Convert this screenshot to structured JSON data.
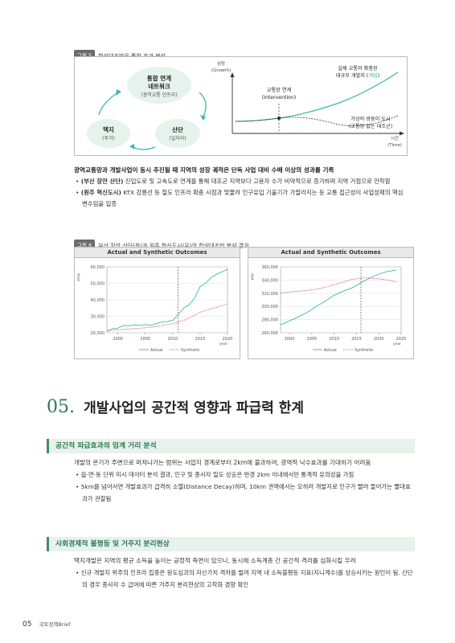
{
  "figure5": {
    "tag": "그림 5",
    "title": "합성대조법을 통한 효과 분석",
    "network_title": "통합 연계",
    "network_title2": "네트워크",
    "network_sub": "(광역교통 인프라)",
    "left_node": "택지",
    "left_node_sub": "(주거)",
    "right_node": "산단",
    "right_node_sub": "(일자리)",
    "y_label": "성장",
    "y_label_en": "(Growth)",
    "x_label": "시간",
    "x_label_en": "(Time)",
    "intervention": "교통망 연계",
    "intervention_en": "(Intervention)",
    "actual_line1": "실제 교통이 확충된",
    "actual_line2a": "대규모 개발지 (",
    "actual_line2b": "개입",
    "actual_line2c": ")",
    "synthetic_line1": "가상의 쌍둥이 도시",
    "synthetic_line2": "(교통망 없는 대조군)"
  },
  "para1": {
    "heading": "광역교통망과 개발사업이 동시 추진될 때 지역의 성장 궤적은 단독 사업 대비 수배 이상의 성과를 기록",
    "b1_label": "(부산 장안 산단)",
    "b1_text": " 진입도로 및 고속도로 연계를 통해 대조군 지역보다 고용자 수가 비약적으로 증가하며 지역 거점으로 안착함",
    "b2_label": "(원주 혁신도시)",
    "b2_text": " KTX 강릉선 등 철도 인프라 확충 시점과 맞물려 인구유입 기울기가 가팔라지는 등 교통 접근성이 사업성패의 핵심 변수임을 입증"
  },
  "figure6": {
    "tag": "그림 6",
    "title": "부산 장안 산단(좌)과 원주 혁신도시(우)의 합성대조법 분석 결과",
    "left_panel_title": "Actual and Synthetic Outcomes",
    "right_panel_title": "Actual and Synthetic Outcomes",
    "left_ylabel": "emp",
    "right_ylabel": "pop",
    "xlabel": "year",
    "legend_actual": "Actual",
    "legend_synthetic": "Synthetic"
  },
  "chart_data": [
    {
      "type": "line",
      "title": "Actual and Synthetic Outcomes",
      "xlabel": "year",
      "ylabel": "emp",
      "xlim": [
        1998,
        2020
      ],
      "ylim": [
        20000,
        60000
      ],
      "x_ticks": [
        2000,
        2005,
        2010,
        2015,
        2020
      ],
      "y_ticks": [
        "20,000",
        "30,000",
        "40,000",
        "50,000",
        "60,000"
      ],
      "intervention_year": 2011,
      "series": [
        {
          "name": "Actual",
          "color": "#3fb6b0",
          "style": "solid",
          "x": [
            1998,
            1999,
            2000,
            2001,
            2002,
            2003,
            2004,
            2005,
            2006,
            2007,
            2008,
            2009,
            2010,
            2011,
            2012,
            2013,
            2014,
            2015,
            2016,
            2017,
            2018,
            2019,
            2020
          ],
          "values": [
            21000,
            22500,
            22800,
            24500,
            24200,
            24800,
            24500,
            25000,
            24500,
            25500,
            26500,
            26800,
            27500,
            31000,
            35000,
            37000,
            41000,
            48000,
            50000,
            53500,
            55500,
            57000,
            58500
          ]
        },
        {
          "name": "Synthetic",
          "color": "#c9506a",
          "style": "dotted",
          "x": [
            1998,
            1999,
            2000,
            2001,
            2002,
            2003,
            2004,
            2005,
            2006,
            2007,
            2008,
            2009,
            2010,
            2011,
            2012,
            2013,
            2014,
            2015,
            2016,
            2017,
            2018,
            2019,
            2020
          ],
          "values": [
            21000,
            21500,
            21800,
            22000,
            22300,
            22500,
            22800,
            23000,
            23300,
            23800,
            24300,
            25000,
            25500,
            26500,
            27500,
            29000,
            30500,
            32500,
            33500,
            34500,
            35500,
            36500,
            37500
          ]
        }
      ]
    },
    {
      "type": "line",
      "title": "Actual and Synthetic Outcomes",
      "xlabel": "year",
      "ylabel": "pop",
      "xlim": [
        1998,
        2025
      ],
      "ylim": [
        260000,
        360000
      ],
      "x_ticks": [
        2000,
        2005,
        2010,
        2015,
        2020,
        2025
      ],
      "y_ticks": [
        "260,000",
        "280,000",
        "300,000",
        "320,000",
        "340,000",
        "360,000"
      ],
      "intervention_year": 2016,
      "series": [
        {
          "name": "Actual",
          "color": "#3fb6b0",
          "style": "solid",
          "x": [
            1998,
            2000,
            2002,
            2004,
            2006,
            2008,
            2010,
            2012,
            2014,
            2016,
            2018,
            2020,
            2022,
            2024
          ],
          "values": [
            272000,
            278000,
            284000,
            291000,
            300000,
            308000,
            317000,
            323000,
            328000,
            336000,
            343000,
            349000,
            353000,
            355000
          ]
        },
        {
          "name": "Synthetic",
          "color": "#c9506a",
          "style": "dotted",
          "x": [
            1998,
            2000,
            2002,
            2004,
            2006,
            2008,
            2010,
            2012,
            2014,
            2016,
            2018,
            2020,
            2022,
            2024
          ],
          "values": [
            320000,
            322000,
            323000,
            324000,
            326000,
            329000,
            333000,
            337000,
            341000,
            343000,
            343000,
            342000,
            340000,
            337000
          ]
        }
      ]
    }
  ],
  "section05": {
    "number": "05.",
    "title": "개발사업의 공간적 영향과 파급력 한계"
  },
  "sub1": {
    "heading": "공간적 파급효과의 임계 거리 분석",
    "lead": "개발의 온기가 주변으로 퍼져나가는 범위는 사업지 경계로부터 2km에 불과하여, 광역적 낙수효과를 기대하기 어려움",
    "b1": "읍·면·동 단위 미시 데이터 분석 결과, 인구 및 종사자 밀도 상승은 반경 2km 이내에서만 통계적 유의성을 가짐",
    "b2": "5km를 넘어서면 개발효과가 급격히 소멸(Distance Decay)하며, 10km 권역에서는 오히려 개발지로 인구가 빨려 들어가는 빨대효과가 관찰됨"
  },
  "sub2": {
    "heading": "사회경제적 불평등 및 거주지 분리현상",
    "lead": "택지개발은 지역의 평균 소득을 높이는 긍정적 측면이 있으나, 동시에 소득계층 간 공간적 격리를 심화시킬 우려",
    "b1": "신규 개발지 위주의 인프라 집중은 원도심과의 자산가치 격차를 벌려 지역 내 소득불평등 지표(지니계수)를 상승시키는 원인이 됨. 산단의 경우 종사자 수 급여에 따른 거주지 분리현상의 고착화 경향 확인"
  },
  "footer": {
    "page": "05",
    "pub": "국토정책Brief"
  },
  "colors": {
    "accent_green": "#2c7a53",
    "teal": "#3fb6b0",
    "red": "#c9506a"
  }
}
